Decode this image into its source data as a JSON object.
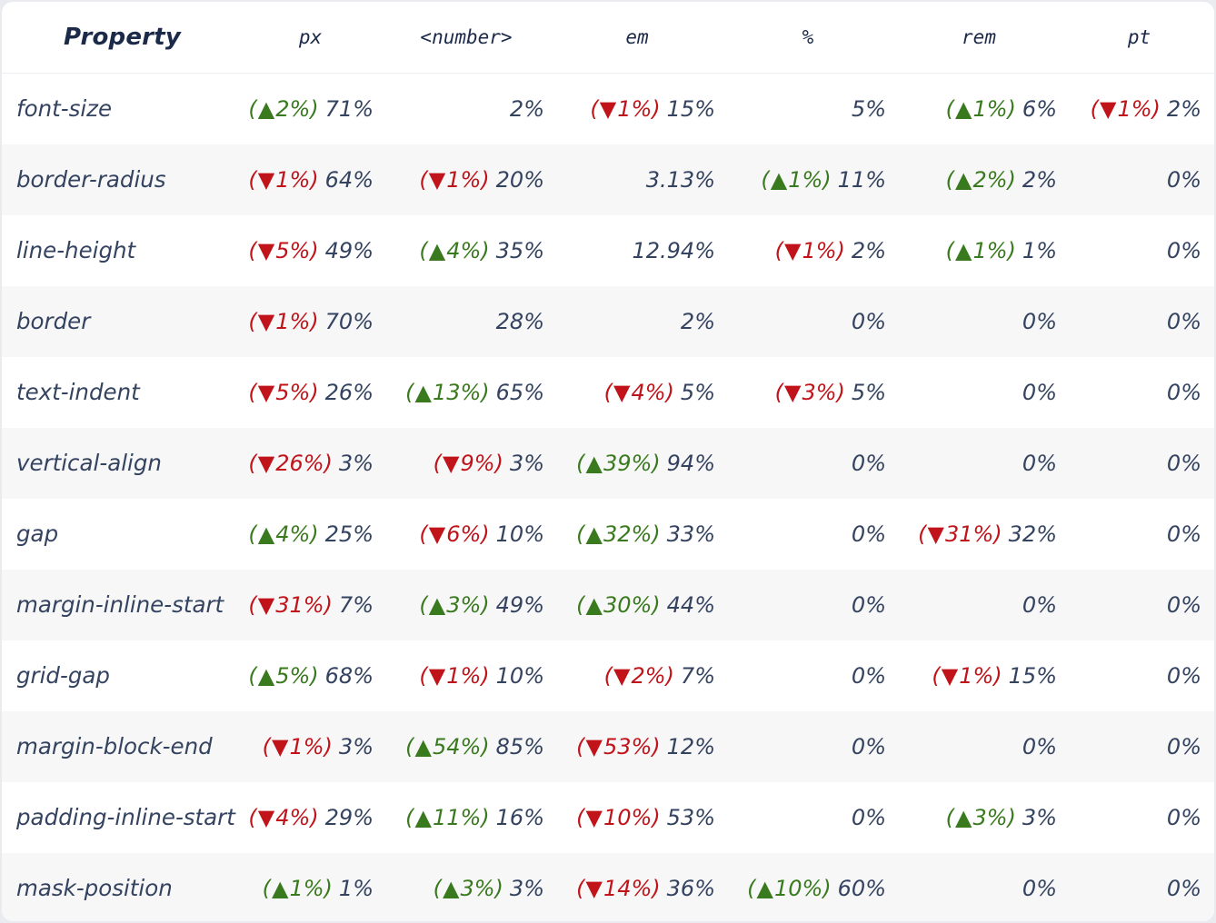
{
  "table": {
    "headers": [
      "Property",
      "px",
      "<number>",
      "em",
      "%",
      "rem",
      "pt"
    ],
    "rows": [
      {
        "property": "font-size",
        "cells": [
          {
            "delta": "2%",
            "dir": "up",
            "value": "71%"
          },
          {
            "delta": null,
            "dir": null,
            "value": "2%"
          },
          {
            "delta": "1%",
            "dir": "down",
            "value": "15%"
          },
          {
            "delta": null,
            "dir": null,
            "value": "5%"
          },
          {
            "delta": "1%",
            "dir": "up",
            "value": "6%"
          },
          {
            "delta": "1%",
            "dir": "down",
            "value": "2%"
          }
        ]
      },
      {
        "property": "border-radius",
        "cells": [
          {
            "delta": "1%",
            "dir": "down",
            "value": "64%"
          },
          {
            "delta": "1%",
            "dir": "down",
            "value": "20%"
          },
          {
            "delta": null,
            "dir": null,
            "value": "3.13%"
          },
          {
            "delta": "1%",
            "dir": "up",
            "value": "11%"
          },
          {
            "delta": "2%",
            "dir": "up",
            "value": "2%"
          },
          {
            "delta": null,
            "dir": null,
            "value": "0%"
          }
        ]
      },
      {
        "property": "line-height",
        "cells": [
          {
            "delta": "5%",
            "dir": "down",
            "value": "49%"
          },
          {
            "delta": "4%",
            "dir": "up",
            "value": "35%"
          },
          {
            "delta": null,
            "dir": null,
            "value": "12.94%"
          },
          {
            "delta": "1%",
            "dir": "down",
            "value": "2%"
          },
          {
            "delta": "1%",
            "dir": "up",
            "value": "1%"
          },
          {
            "delta": null,
            "dir": null,
            "value": "0%"
          }
        ]
      },
      {
        "property": "border",
        "cells": [
          {
            "delta": "1%",
            "dir": "down",
            "value": "70%"
          },
          {
            "delta": null,
            "dir": null,
            "value": "28%"
          },
          {
            "delta": null,
            "dir": null,
            "value": "2%"
          },
          {
            "delta": null,
            "dir": null,
            "value": "0%"
          },
          {
            "delta": null,
            "dir": null,
            "value": "0%"
          },
          {
            "delta": null,
            "dir": null,
            "value": "0%"
          }
        ]
      },
      {
        "property": "text-indent",
        "cells": [
          {
            "delta": "5%",
            "dir": "down",
            "value": "26%"
          },
          {
            "delta": "13%",
            "dir": "up",
            "value": "65%"
          },
          {
            "delta": "4%",
            "dir": "down",
            "value": "5%"
          },
          {
            "delta": "3%",
            "dir": "down",
            "value": "5%"
          },
          {
            "delta": null,
            "dir": null,
            "value": "0%"
          },
          {
            "delta": null,
            "dir": null,
            "value": "0%"
          }
        ]
      },
      {
        "property": "vertical-align",
        "cells": [
          {
            "delta": "26%",
            "dir": "down",
            "value": "3%"
          },
          {
            "delta": "9%",
            "dir": "down",
            "value": "3%"
          },
          {
            "delta": "39%",
            "dir": "up",
            "value": "94%"
          },
          {
            "delta": null,
            "dir": null,
            "value": "0%"
          },
          {
            "delta": null,
            "dir": null,
            "value": "0%"
          },
          {
            "delta": null,
            "dir": null,
            "value": "0%"
          }
        ]
      },
      {
        "property": "gap",
        "cells": [
          {
            "delta": "4%",
            "dir": "up",
            "value": "25%"
          },
          {
            "delta": "6%",
            "dir": "down",
            "value": "10%"
          },
          {
            "delta": "32%",
            "dir": "up",
            "value": "33%"
          },
          {
            "delta": null,
            "dir": null,
            "value": "0%"
          },
          {
            "delta": "31%",
            "dir": "down",
            "value": "32%"
          },
          {
            "delta": null,
            "dir": null,
            "value": "0%"
          }
        ]
      },
      {
        "property": "margin-inline-start",
        "cells": [
          {
            "delta": "31%",
            "dir": "down",
            "value": "7%"
          },
          {
            "delta": "3%",
            "dir": "up",
            "value": "49%"
          },
          {
            "delta": "30%",
            "dir": "up",
            "value": "44%"
          },
          {
            "delta": null,
            "dir": null,
            "value": "0%"
          },
          {
            "delta": null,
            "dir": null,
            "value": "0%"
          },
          {
            "delta": null,
            "dir": null,
            "value": "0%"
          }
        ]
      },
      {
        "property": "grid-gap",
        "cells": [
          {
            "delta": "5%",
            "dir": "up",
            "value": "68%"
          },
          {
            "delta": "1%",
            "dir": "down",
            "value": "10%"
          },
          {
            "delta": "2%",
            "dir": "down",
            "value": "7%"
          },
          {
            "delta": null,
            "dir": null,
            "value": "0%"
          },
          {
            "delta": "1%",
            "dir": "down",
            "value": "15%"
          },
          {
            "delta": null,
            "dir": null,
            "value": "0%"
          }
        ]
      },
      {
        "property": "margin-block-end",
        "cells": [
          {
            "delta": "1%",
            "dir": "down",
            "value": "3%"
          },
          {
            "delta": "54%",
            "dir": "up",
            "value": "85%"
          },
          {
            "delta": "53%",
            "dir": "down",
            "value": "12%"
          },
          {
            "delta": null,
            "dir": null,
            "value": "0%"
          },
          {
            "delta": null,
            "dir": null,
            "value": "0%"
          },
          {
            "delta": null,
            "dir": null,
            "value": "0%"
          }
        ]
      },
      {
        "property": "padding-inline-start",
        "cells": [
          {
            "delta": "4%",
            "dir": "down",
            "value": "29%"
          },
          {
            "delta": "11%",
            "dir": "up",
            "value": "16%"
          },
          {
            "delta": "10%",
            "dir": "down",
            "value": "53%"
          },
          {
            "delta": null,
            "dir": null,
            "value": "0%"
          },
          {
            "delta": "3%",
            "dir": "up",
            "value": "3%"
          },
          {
            "delta": null,
            "dir": null,
            "value": "0%"
          }
        ]
      },
      {
        "property": "mask-position",
        "cells": [
          {
            "delta": "1%",
            "dir": "up",
            "value": "1%"
          },
          {
            "delta": "3%",
            "dir": "up",
            "value": "3%"
          },
          {
            "delta": "14%",
            "dir": "down",
            "value": "36%"
          },
          {
            "delta": "10%",
            "dir": "up",
            "value": "60%"
          },
          {
            "delta": null,
            "dir": null,
            "value": "0%"
          },
          {
            "delta": null,
            "dir": null,
            "value": "0%"
          }
        ]
      }
    ]
  },
  "colors": {
    "up": "#3a7a1e",
    "down": "#c0141a",
    "text": "#344360",
    "header_text": "#1c2a4a",
    "row_alt": "#f7f7f8"
  },
  "icons": {
    "up": "triangle-up-icon",
    "down": "triangle-down-icon"
  }
}
